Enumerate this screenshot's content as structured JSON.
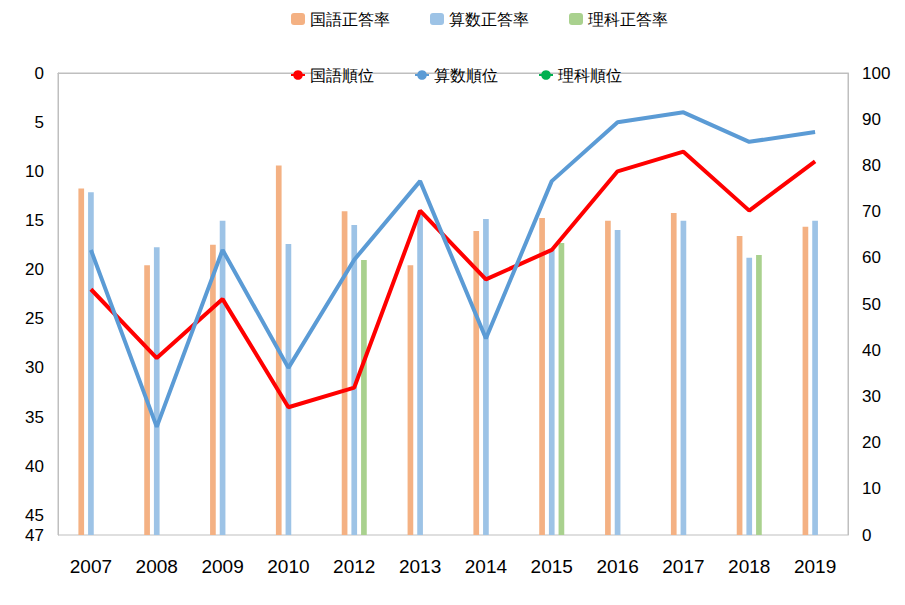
{
  "chart_data": {
    "type": "bar",
    "categories": [
      "2007",
      "2008",
      "2009",
      "2010",
      "2012",
      "2013",
      "2014",
      "2015",
      "2016",
      "2017",
      "2018",
      "2019"
    ],
    "ylim": [
      0,
      47
    ],
    "yticks": [
      0,
      5,
      10,
      15,
      20,
      25,
      30,
      35,
      40,
      45
    ],
    "y2lim": [
      0,
      100
    ],
    "y2ticks": [
      0,
      10,
      20,
      30,
      40,
      50,
      60,
      70,
      80,
      90,
      100
    ],
    "grid": false,
    "legend": "top",
    "series": [
      {
        "name": "国語正答率",
        "type": "bar",
        "axis": "y2",
        "color": "#f4b183",
        "values": [
          75,
          58.4,
          62.8,
          80,
          70.1,
          58.4,
          65.8,
          68.6,
          68,
          69.7,
          64.7,
          66.7
        ]
      },
      {
        "name": "算数正答率",
        "type": "bar",
        "axis": "y2",
        "color": "#9dc3e6",
        "values": [
          74.2,
          62.3,
          68,
          63,
          67.1,
          70,
          68.4,
          61.7,
          66,
          68,
          60,
          68
        ]
      },
      {
        "name": "理科正答率",
        "type": "bar",
        "axis": "y2",
        "color": "#a9d18e",
        "values": [
          null,
          null,
          null,
          null,
          59.5,
          null,
          null,
          63.2,
          null,
          null,
          60.6,
          null
        ]
      },
      {
        "name": "国語順位",
        "type": "line",
        "color": "#ff0000",
        "values": [
          22,
          29,
          23,
          34,
          32,
          14,
          21,
          18,
          10,
          8,
          14,
          9
        ]
      },
      {
        "name": "算数順位",
        "type": "line",
        "color": "#5b9bd5",
        "values": [
          18,
          36,
          18,
          30,
          19,
          11,
          27,
          11,
          5,
          4,
          7,
          6
        ]
      },
      {
        "name": "理科順位",
        "type": "line",
        "color": "#00b050",
        "values": [
          null,
          null,
          null,
          null,
          null,
          null,
          null,
          null,
          null,
          null,
          null,
          null
        ]
      }
    ]
  }
}
